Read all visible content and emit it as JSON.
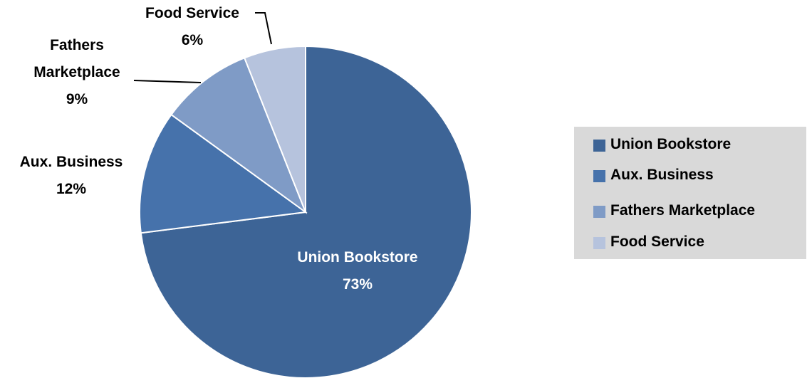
{
  "chart_data": {
    "type": "pie",
    "categories": [
      "Union Bookstore",
      "Aux. Business",
      "Fathers Marketplace",
      "Food Service"
    ],
    "values": [
      73,
      12,
      9,
      6
    ],
    "value_labels": [
      "73%",
      "12%",
      "9%",
      "6%"
    ],
    "colors": [
      "#3d6496",
      "#4672ab",
      "#7f9bc6",
      "#b6c3dd"
    ],
    "legend": "right"
  }
}
